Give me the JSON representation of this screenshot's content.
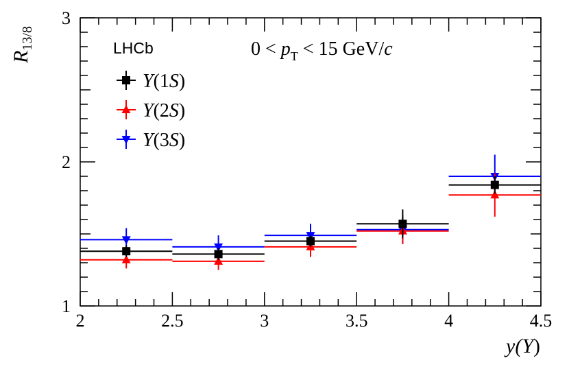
{
  "chart_data": {
    "type": "scatter",
    "title": "",
    "experiment_label": "LHCb",
    "annotation": {
      "prefix": "0 < ",
      "var": "p",
      "sub": "T",
      "suffix": " < 15 GeV/",
      "unit_italic": "c"
    },
    "ylabel": {
      "main": "R",
      "sub": "13/8"
    },
    "xlabel": {
      "main": "y(",
      "sym": "Υ",
      "close": ")"
    },
    "xlim": [
      2,
      4.5
    ],
    "ylim": [
      1,
      3
    ],
    "x_ticks": [
      {
        "value": 2,
        "label": "2"
      },
      {
        "value": 2.5,
        "label": "2.5"
      },
      {
        "value": 3,
        "label": "3"
      },
      {
        "value": 3.5,
        "label": "3.5"
      },
      {
        "value": 4,
        "label": "4"
      },
      {
        "value": 4.5,
        "label": "4.5"
      }
    ],
    "y_ticks": [
      {
        "value": 1,
        "label": "1"
      },
      {
        "value": 2,
        "label": "2"
      },
      {
        "value": 3,
        "label": "3"
      }
    ],
    "bins": [
      [
        2.0,
        2.5
      ],
      [
        2.5,
        3.0
      ],
      [
        3.0,
        3.5
      ],
      [
        3.5,
        4.0
      ],
      [
        4.0,
        4.5
      ]
    ],
    "series": [
      {
        "name": "Υ(1S)",
        "legend_state": "1",
        "color": "#000000",
        "marker": "square",
        "x": [
          2.25,
          2.75,
          3.25,
          3.75,
          4.25
        ],
        "values": [
          1.38,
          1.36,
          1.45,
          1.57,
          1.84
        ],
        "err": [
          0.04,
          0.04,
          0.04,
          0.1,
          0.06
        ]
      },
      {
        "name": "Υ(2S)",
        "legend_state": "2",
        "color": "#ff0000",
        "marker": "triangle-up",
        "x": [
          2.25,
          2.75,
          3.25,
          3.75,
          4.25
        ],
        "values": [
          1.32,
          1.31,
          1.41,
          1.52,
          1.77
        ],
        "err": [
          0.06,
          0.06,
          0.07,
          0.09,
          0.15
        ]
      },
      {
        "name": "Υ(3S)",
        "legend_state": "3",
        "color": "#0000ff",
        "marker": "triangle-down",
        "x": [
          2.25,
          2.75,
          3.25,
          3.75,
          4.25
        ],
        "values": [
          1.46,
          1.41,
          1.49,
          1.53,
          1.9
        ],
        "err": [
          0.08,
          0.08,
          0.08,
          0.1,
          0.15
        ]
      }
    ]
  }
}
